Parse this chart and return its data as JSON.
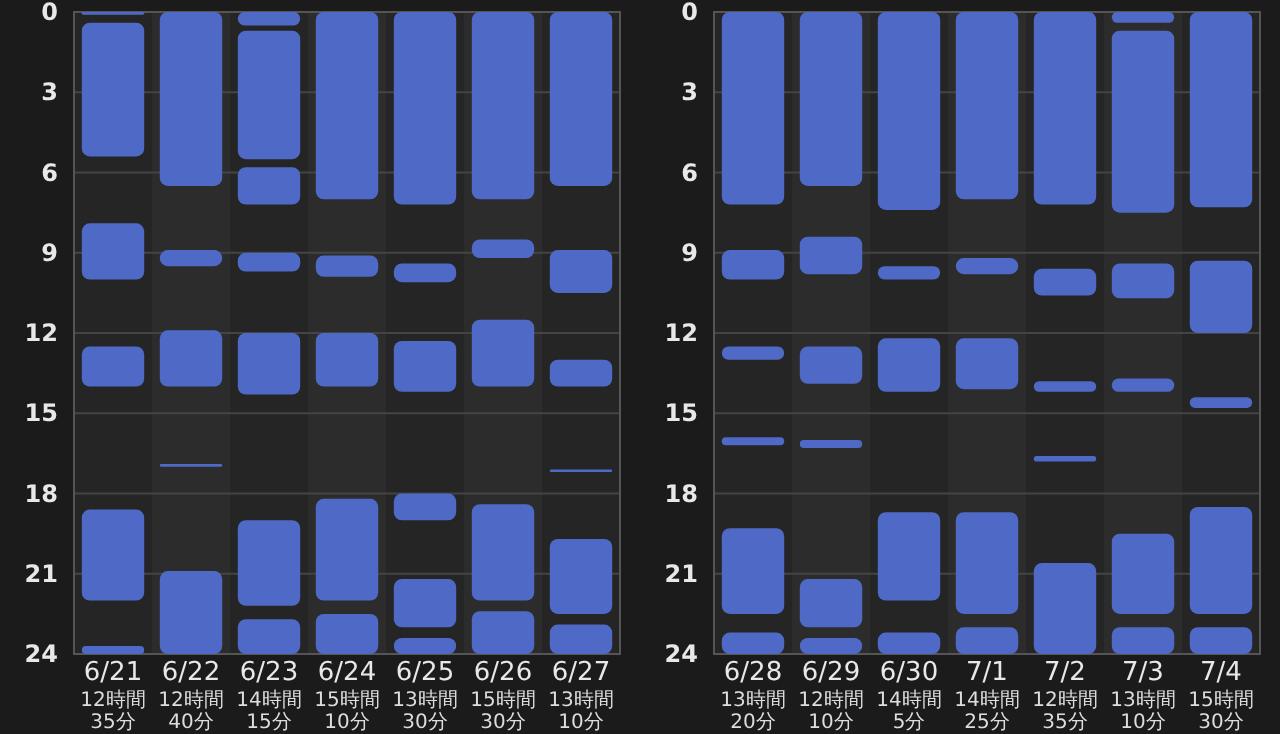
{
  "chart_data": [
    {
      "type": "bar",
      "categories": [
        "6/21\n12時間\n35分",
        "6/22\n12時間\n40分",
        "6/23\n14時間\n15分",
        "6/24\n15時間\n10分",
        "6/25\n13時間\n30分",
        "6/26\n15時間\n30分",
        "6/27\n13時間\n10分"
      ],
      "ylim": [
        24,
        0
      ],
      "yticks": [
        0,
        3,
        6,
        9,
        12,
        15,
        18,
        21,
        24
      ],
      "grid": "y",
      "series": [
        {
          "color": "#4f6ac6",
          "base": [
            0,
            0,
            0,
            0,
            0,
            0,
            0
          ],
          "values": [
            0.1,
            6.5,
            0.5,
            7,
            7.2,
            7,
            6.5
          ]
        },
        {
          "color": "#4f6ac6",
          "base": [
            0.4,
            8.9,
            0.7,
            9.1,
            9.4,
            8.5,
            8.9
          ],
          "values": [
            5,
            0.6,
            4.8,
            0.8,
            0.7,
            0.7,
            1.6
          ]
        },
        {
          "color": "#4f6ac6",
          "base": [
            7.9,
            11.9,
            5.8,
            12,
            12.3,
            11.5,
            13
          ],
          "values": [
            2.1,
            2.1,
            1.4,
            2,
            1.9,
            2.5,
            1
          ]
        },
        {
          "color": "#4f6ac6",
          "base": [
            12.5,
            16.9,
            9,
            18.2,
            18,
            18.4,
            17.1
          ],
          "values": [
            1.5,
            0.1,
            0.7,
            3.8,
            1,
            3.6,
            0.1
          ]
        },
        {
          "color": "#4f6ac6",
          "base": [
            18.6,
            20.9,
            12,
            22.5,
            21.2,
            22.4,
            19.7
          ],
          "values": [
            3.4,
            3.1,
            2.3,
            1.5,
            1.8,
            1.6,
            2.8
          ]
        },
        {
          "color": "#4f6ac6",
          "base": [
            23.7,
            null,
            19,
            null,
            23.4,
            null,
            22.9
          ],
          "values": [
            0.3,
            null,
            3.2,
            null,
            0.6,
            null,
            1.1
          ]
        },
        {
          "color": "#4f6ac6",
          "base": [
            null,
            null,
            22.7,
            null,
            null,
            null,
            null
          ],
          "values": [
            null,
            null,
            1.3,
            null,
            null,
            null,
            null
          ]
        }
      ]
    },
    {
      "type": "bar",
      "categories": [
        "6/28\n13時間\n20分",
        "6/29\n12時間\n10分",
        "6/30\n14時間\n5分",
        "7/1\n14時間\n25分",
        "7/2\n12時間\n35分",
        "7/3\n13時間\n10分",
        "7/4\n15時間\n30分"
      ],
      "ylim": [
        24,
        0
      ],
      "yticks": [
        0,
        3,
        6,
        9,
        12,
        15,
        18,
        21,
        24
      ],
      "grid": "y",
      "series": [
        {
          "color": "#4f6ac6",
          "base": [
            0,
            0,
            0,
            0,
            0,
            0,
            0
          ],
          "values": [
            7.2,
            6.5,
            7.4,
            7,
            7.2,
            0.4,
            7.3
          ]
        },
        {
          "color": "#4f6ac6",
          "base": [
            8.9,
            8.4,
            9.5,
            9.2,
            9.6,
            0.7,
            9.3
          ],
          "values": [
            1.1,
            1.4,
            0.5,
            0.6,
            1,
            6.8,
            2.7
          ]
        },
        {
          "color": "#4f6ac6",
          "base": [
            12.5,
            12.5,
            12.2,
            12.2,
            13.8,
            9.4,
            14.4
          ],
          "values": [
            0.5,
            1.4,
            2,
            1.9,
            0.4,
            1.3,
            0.4
          ]
        },
        {
          "color": "#4f6ac6",
          "base": [
            15.9,
            16,
            18.7,
            18.7,
            16.6,
            13.7,
            18.5
          ],
          "values": [
            0.3,
            0.3,
            3.3,
            3.8,
            0.2,
            0.5,
            4
          ]
        },
        {
          "color": "#4f6ac6",
          "base": [
            19.3,
            21.2,
            23.2,
            23,
            20.6,
            19.5,
            23
          ],
          "values": [
            3.2,
            1.8,
            0.8,
            1,
            3.4,
            3,
            1
          ]
        },
        {
          "color": "#4f6ac6",
          "base": [
            23.2,
            23.4,
            null,
            null,
            null,
            23,
            null
          ],
          "values": [
            0.8,
            0.6,
            null,
            null,
            null,
            1,
            null
          ]
        }
      ]
    }
  ]
}
